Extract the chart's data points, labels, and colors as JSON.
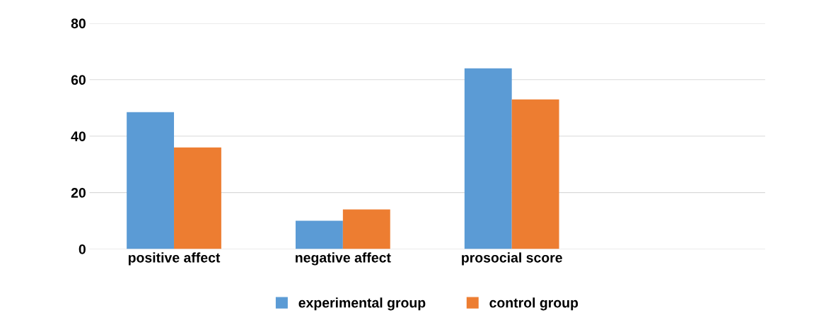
{
  "chart_data": {
    "type": "bar",
    "categories": [
      "positive affect",
      "negative affect",
      "prosocial score",
      null
    ],
    "series": [
      {
        "name": "experimental group",
        "color": "#5b9bd5",
        "values": [
          48.5,
          10,
          64,
          null
        ]
      },
      {
        "name": "control group",
        "color": "#ed7d31",
        "values": [
          36,
          14,
          53,
          null
        ]
      }
    ],
    "ylim": [
      0,
      80
    ],
    "yticks": [
      0,
      20,
      40,
      60,
      80
    ],
    "grid": "y",
    "legend": "bottom"
  }
}
